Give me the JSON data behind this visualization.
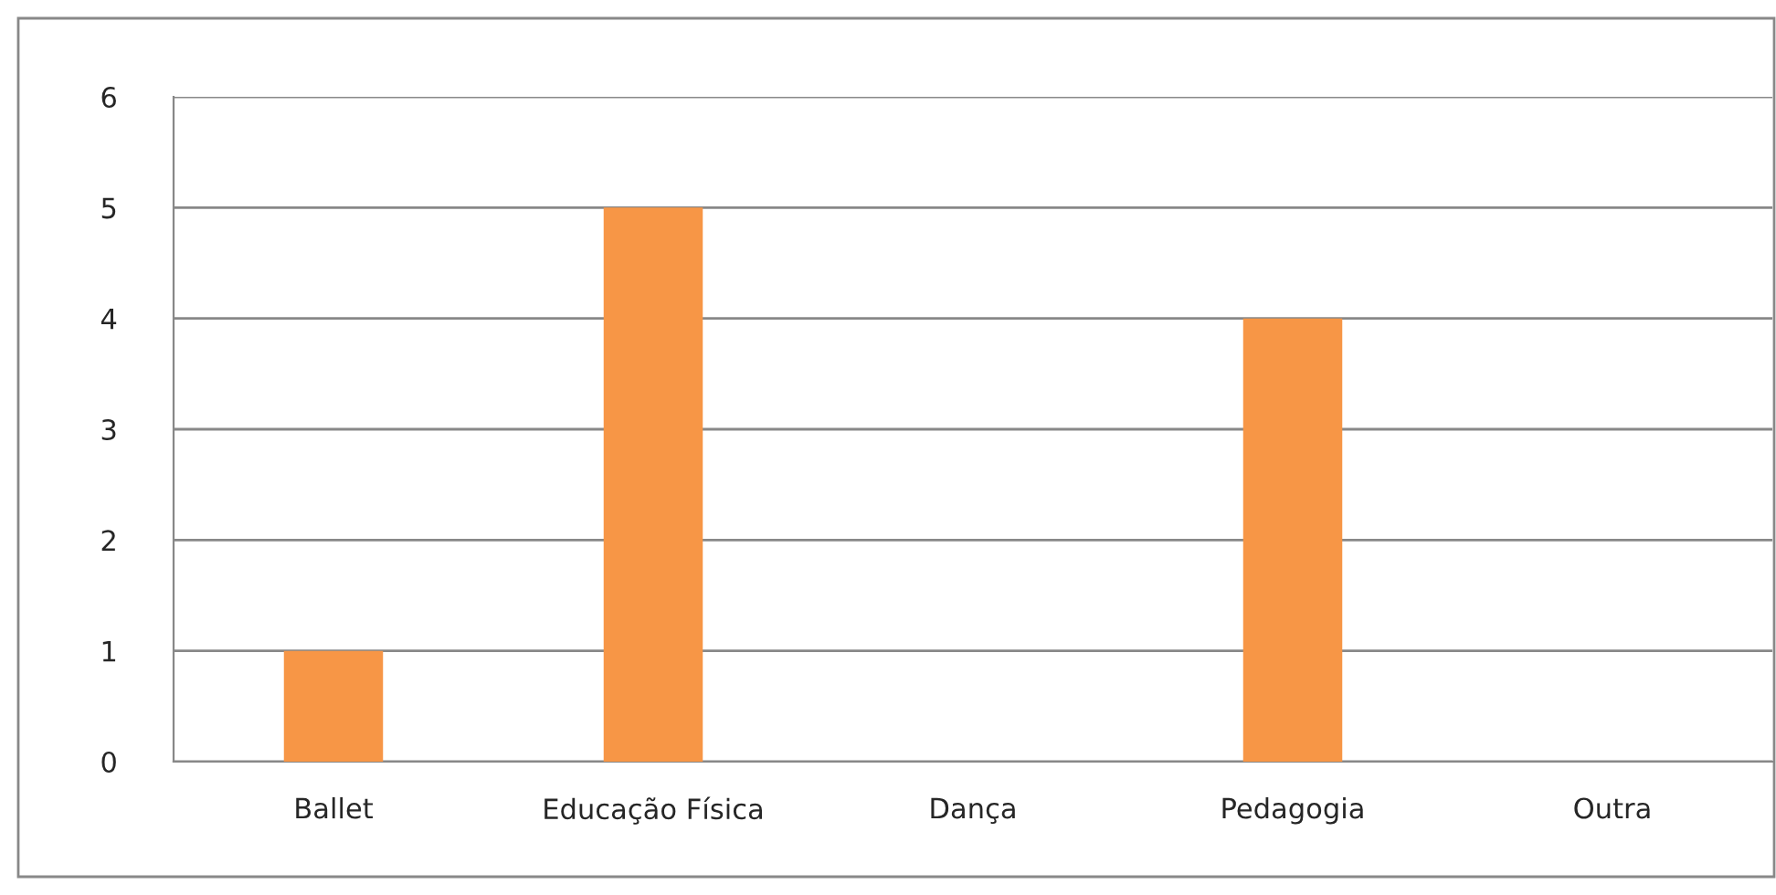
{
  "chart_data": {
    "type": "bar",
    "categories": [
      "Ballet",
      "Educação Física",
      "Dança",
      "Pedagogia",
      "Outra"
    ],
    "values": [
      1,
      5,
      0,
      4,
      0
    ],
    "color": "#f79646",
    "ylim": [
      0,
      6
    ],
    "yticks": [
      0,
      1,
      2,
      3,
      4,
      5,
      6
    ],
    "grid": "y"
  }
}
